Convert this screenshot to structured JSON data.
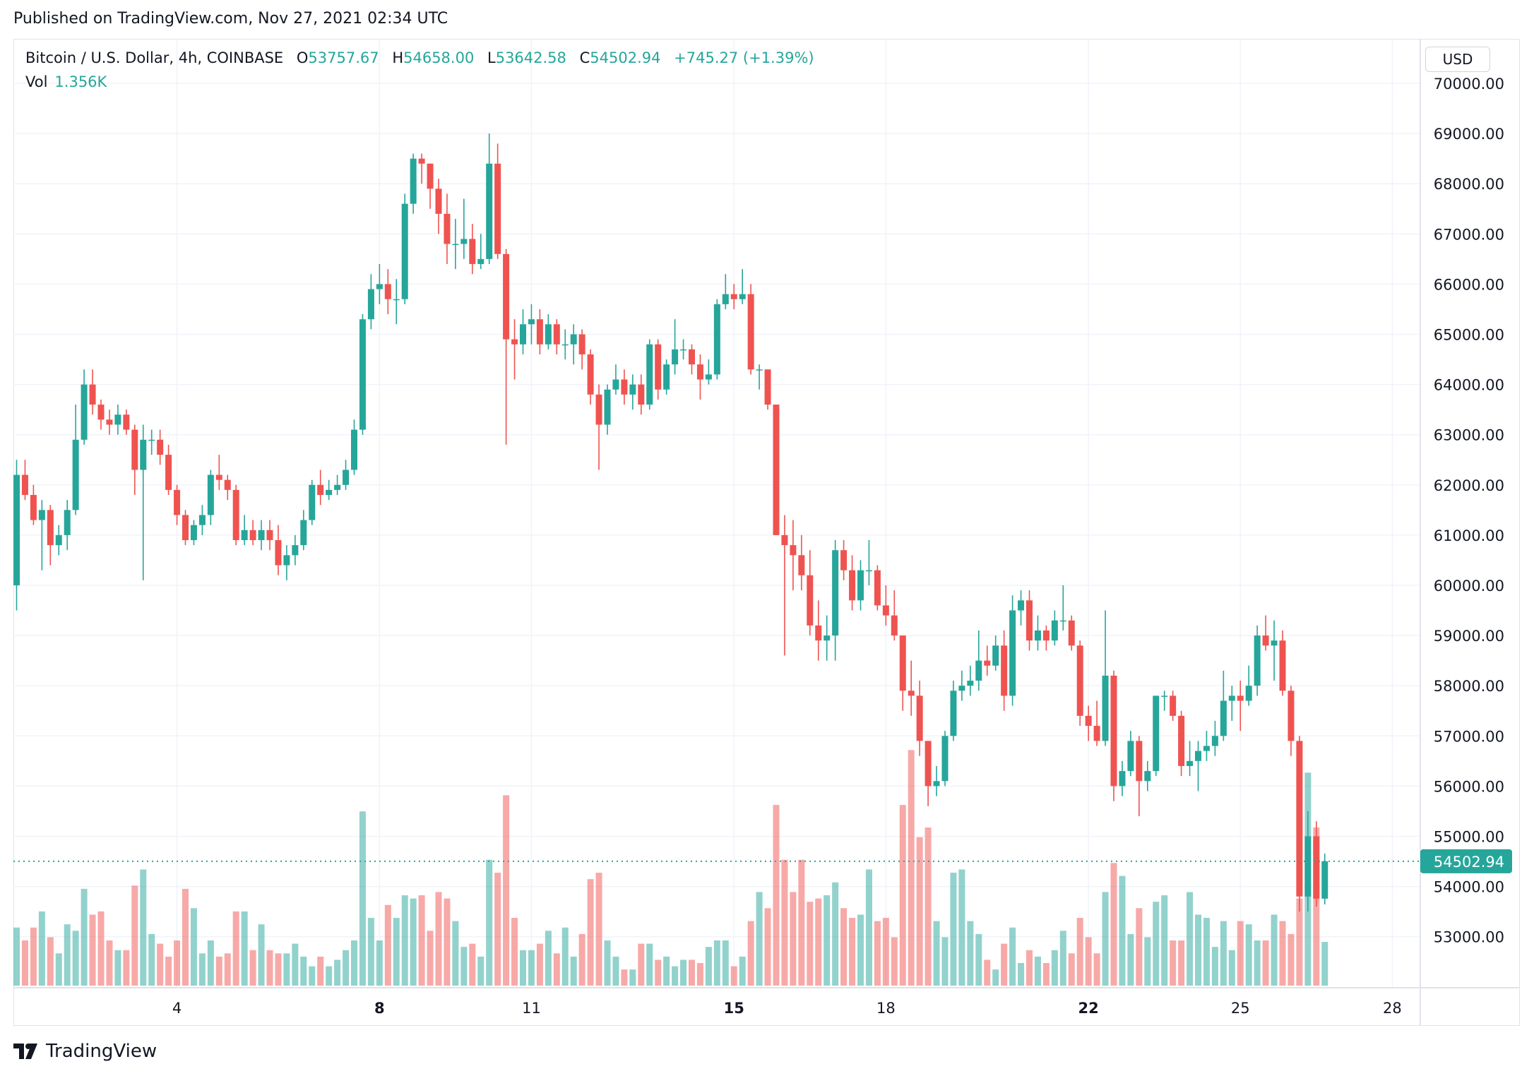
{
  "header": {
    "published": "Published on TradingView.com, Nov 27, 2021 02:34 UTC"
  },
  "legend": {
    "symbol": "Bitcoin / U.S. Dollar, 4h, COINBASE",
    "o_label": "O",
    "o": "53757.67",
    "h_label": "H",
    "h": "54658.00",
    "l_label": "L",
    "l": "53642.58",
    "c_label": "C",
    "c": "54502.94",
    "change": "+745.27 (+1.39%)",
    "vol_label": "Vol",
    "vol": "1.356K"
  },
  "currency": "USD",
  "footer": {
    "brand": "TradingView"
  },
  "colors": {
    "up": "#26a69a",
    "down": "#ef5350",
    "grid": "#f0f3fa"
  },
  "chart_data": {
    "type": "candlestick",
    "interval": "4h",
    "ylim": [
      52200,
      70700
    ],
    "y_ticks": [
      53000,
      54000,
      55000,
      56000,
      57000,
      58000,
      59000,
      60000,
      61000,
      62000,
      63000,
      64000,
      65000,
      66000,
      67000,
      68000,
      69000,
      70000
    ],
    "x_ticks": [
      {
        "label": "4",
        "bold": false,
        "candle": 19
      },
      {
        "label": "8",
        "bold": true,
        "candle": 43
      },
      {
        "label": "11",
        "bold": false,
        "candle": 61
      },
      {
        "label": "15",
        "bold": true,
        "candle": 85
      },
      {
        "label": "18",
        "bold": false,
        "candle": 103
      },
      {
        "label": "22",
        "bold": true,
        "candle": 127
      },
      {
        "label": "25",
        "bold": false,
        "candle": 145
      },
      {
        "label": "28",
        "bold": false,
        "candle": 163
      }
    ],
    "last_price": 54502.94,
    "last_price_label": "54502.94",
    "ohlc": [
      [
        60000,
        62500,
        59500,
        62200
      ],
      [
        62200,
        62500,
        61700,
        61800
      ],
      [
        61800,
        62000,
        61200,
        61300
      ],
      [
        61300,
        61700,
        60300,
        61500
      ],
      [
        61500,
        61600,
        60400,
        60800
      ],
      [
        60800,
        61200,
        60600,
        61000
      ],
      [
        61000,
        61700,
        60700,
        61500
      ],
      [
        61500,
        63600,
        61400,
        62900
      ],
      [
        62900,
        64300,
        62800,
        64000
      ],
      [
        64000,
        64300,
        63400,
        63600
      ],
      [
        63600,
        63700,
        63100,
        63300
      ],
      [
        63300,
        63500,
        63000,
        63200
      ],
      [
        63200,
        63600,
        63000,
        63400
      ],
      [
        63400,
        63500,
        63000,
        63100
      ],
      [
        63100,
        63200,
        61800,
        62300
      ],
      [
        62300,
        63200,
        60100,
        62900
      ],
      [
        62900,
        63100,
        62600,
        62900
      ],
      [
        62900,
        63100,
        62400,
        62600
      ],
      [
        62600,
        62800,
        61800,
        61900
      ],
      [
        61900,
        62000,
        61200,
        61400
      ],
      [
        61400,
        61500,
        60800,
        60900
      ],
      [
        60900,
        61300,
        60800,
        61200
      ],
      [
        61200,
        61600,
        61000,
        61400
      ],
      [
        61400,
        62300,
        61200,
        62200
      ],
      [
        62200,
        62600,
        61900,
        62100
      ],
      [
        62100,
        62200,
        61700,
        61900
      ],
      [
        61900,
        62000,
        60800,
        60900
      ],
      [
        60900,
        61400,
        60800,
        61100
      ],
      [
        61100,
        61300,
        60800,
        60900
      ],
      [
        60900,
        61300,
        60700,
        61100
      ],
      [
        61100,
        61300,
        60700,
        60900
      ],
      [
        60900,
        61200,
        60200,
        60400
      ],
      [
        60400,
        60800,
        60100,
        60600
      ],
      [
        60600,
        61000,
        60400,
        60800
      ],
      [
        60800,
        61500,
        60700,
        61300
      ],
      [
        61300,
        62100,
        61200,
        62000
      ],
      [
        62000,
        62300,
        61600,
        61800
      ],
      [
        61800,
        62100,
        61700,
        61900
      ],
      [
        61900,
        62200,
        61800,
        62000
      ],
      [
        62000,
        62500,
        61900,
        62300
      ],
      [
        62300,
        63300,
        62200,
        63100
      ],
      [
        63100,
        65400,
        63000,
        65300
      ],
      [
        65300,
        66200,
        65100,
        65900
      ],
      [
        65900,
        66400,
        65600,
        66000
      ],
      [
        66000,
        66300,
        65400,
        65700
      ],
      [
        65700,
        66100,
        65200,
        65700
      ],
      [
        65700,
        67800,
        65600,
        67600
      ],
      [
        67600,
        68600,
        67400,
        68500
      ],
      [
        68500,
        68600,
        68000,
        68400
      ],
      [
        68400,
        68400,
        67500,
        67900
      ],
      [
        67900,
        68100,
        67000,
        67400
      ],
      [
        67400,
        67800,
        66400,
        66800
      ],
      [
        66800,
        67300,
        66300,
        66800
      ],
      [
        66800,
        67700,
        66500,
        66900
      ],
      [
        66900,
        67200,
        66200,
        66400
      ],
      [
        66400,
        67000,
        66300,
        66500
      ],
      [
        66500,
        69000,
        66400,
        68400
      ],
      [
        68400,
        68800,
        66500,
        66600
      ],
      [
        66600,
        66700,
        62800,
        64900
      ],
      [
        64900,
        65300,
        64100,
        64800
      ],
      [
        64800,
        65500,
        64600,
        65200
      ],
      [
        65200,
        65600,
        64800,
        65300
      ],
      [
        65300,
        65500,
        64600,
        64800
      ],
      [
        64800,
        65400,
        64700,
        65200
      ],
      [
        65200,
        65300,
        64600,
        64800
      ],
      [
        64800,
        65100,
        64500,
        64800
      ],
      [
        64800,
        65200,
        64400,
        65000
      ],
      [
        65000,
        65100,
        64300,
        64600
      ],
      [
        64600,
        64700,
        63600,
        63800
      ],
      [
        63800,
        64000,
        62300,
        63200
      ],
      [
        63200,
        64000,
        63000,
        63900
      ],
      [
        63900,
        64400,
        63800,
        64100
      ],
      [
        64100,
        64300,
        63600,
        63800
      ],
      [
        63800,
        64200,
        63500,
        64000
      ],
      [
        64000,
        64200,
        63400,
        63600
      ],
      [
        63600,
        64900,
        63500,
        64800
      ],
      [
        64800,
        64900,
        63700,
        63900
      ],
      [
        63900,
        64500,
        63800,
        64400
      ],
      [
        64400,
        65300,
        64200,
        64700
      ],
      [
        64700,
        64900,
        64500,
        64700
      ],
      [
        64700,
        64800,
        64200,
        64400
      ],
      [
        64400,
        64600,
        63700,
        64100
      ],
      [
        64100,
        64500,
        64000,
        64200
      ],
      [
        64200,
        65700,
        64100,
        65600
      ],
      [
        65600,
        66200,
        65500,
        65800
      ],
      [
        65800,
        66000,
        65500,
        65700
      ],
      [
        65700,
        66300,
        65600,
        65800
      ],
      [
        65800,
        66000,
        64200,
        64300
      ],
      [
        64300,
        64400,
        63900,
        64300
      ],
      [
        64300,
        64300,
        63500,
        63600
      ],
      [
        63600,
        63600,
        61000,
        61000
      ],
      [
        61000,
        61400,
        58600,
        60800
      ],
      [
        60800,
        61300,
        59900,
        60600
      ],
      [
        60600,
        61000,
        59900,
        60200
      ],
      [
        60200,
        60700,
        59000,
        59200
      ],
      [
        59200,
        59700,
        58500,
        58900
      ],
      [
        58900,
        59400,
        58500,
        59000
      ],
      [
        59000,
        60900,
        58500,
        60700
      ],
      [
        60700,
        60900,
        60100,
        60300
      ],
      [
        60300,
        60600,
        59500,
        59700
      ],
      [
        59700,
        60500,
        59500,
        60300
      ],
      [
        60300,
        60900,
        60000,
        60300
      ],
      [
        60300,
        60400,
        59500,
        59600
      ],
      [
        59600,
        60000,
        59200,
        59400
      ],
      [
        59400,
        59900,
        58900,
        59000
      ],
      [
        59000,
        59000,
        57500,
        57900
      ],
      [
        57900,
        58500,
        57400,
        57800
      ],
      [
        57800,
        58100,
        56600,
        56900
      ],
      [
        56900,
        56900,
        55600,
        56000
      ],
      [
        56000,
        56400,
        55800,
        56100
      ],
      [
        56100,
        57100,
        56000,
        57000
      ],
      [
        57000,
        58100,
        56900,
        57900
      ],
      [
        57900,
        58300,
        57700,
        58000
      ],
      [
        58000,
        58400,
        57800,
        58100
      ],
      [
        58100,
        59100,
        57900,
        58500
      ],
      [
        58500,
        58800,
        58200,
        58400
      ],
      [
        58400,
        59000,
        58300,
        58800
      ],
      [
        58800,
        59100,
        57500,
        57800
      ],
      [
        57800,
        59800,
        57600,
        59500
      ],
      [
        59500,
        59900,
        59200,
        59700
      ],
      [
        59700,
        59900,
        58700,
        58900
      ],
      [
        58900,
        59400,
        58700,
        59100
      ],
      [
        59100,
        59200,
        58700,
        58900
      ],
      [
        58900,
        59500,
        58800,
        59300
      ],
      [
        59300,
        60000,
        59100,
        59300
      ],
      [
        59300,
        59400,
        58700,
        58800
      ],
      [
        58800,
        58900,
        57200,
        57400
      ],
      [
        57400,
        57600,
        56900,
        57200
      ],
      [
        57200,
        57700,
        56800,
        56900
      ],
      [
        56900,
        59500,
        56800,
        58200
      ],
      [
        58200,
        58300,
        55700,
        56000
      ],
      [
        56000,
        56500,
        55800,
        56300
      ],
      [
        56300,
        57100,
        56200,
        56900
      ],
      [
        56900,
        57000,
        55400,
        56100
      ],
      [
        56100,
        56500,
        55900,
        56300
      ],
      [
        56300,
        57800,
        56200,
        57800
      ],
      [
        57800,
        57900,
        57500,
        57800
      ],
      [
        57800,
        57900,
        57300,
        57400
      ],
      [
        57400,
        57500,
        56200,
        56400
      ],
      [
        56400,
        56900,
        56200,
        56500
      ],
      [
        56500,
        56900,
        55900,
        56700
      ],
      [
        56700,
        57100,
        56500,
        56800
      ],
      [
        56800,
        57300,
        56600,
        57000
      ],
      [
        57000,
        58300,
        56900,
        57700
      ],
      [
        57700,
        58000,
        57300,
        57800
      ],
      [
        57800,
        58100,
        57100,
        57700
      ],
      [
        57700,
        58400,
        57600,
        58000
      ],
      [
        58000,
        59200,
        57800,
        59000
      ],
      [
        59000,
        59400,
        58700,
        58800
      ],
      [
        58800,
        59300,
        58100,
        58900
      ],
      [
        58900,
        59100,
        57800,
        57900
      ],
      [
        57900,
        58000,
        56600,
        56900
      ],
      [
        56900,
        57000,
        53500,
        53800
      ],
      [
        53800,
        55500,
        53500,
        55000
      ],
      [
        55000,
        55300,
        53600,
        53757.67
      ],
      [
        53757.67,
        54658,
        53642.58,
        54502.94
      ]
    ],
    "volume_k": [
      1.8,
      1.4,
      1.8,
      2.3,
      1.5,
      1.0,
      1.9,
      1.7,
      3.0,
      2.2,
      2.3,
      1.4,
      1.1,
      1.1,
      3.1,
      3.6,
      1.6,
      1.3,
      0.9,
      1.4,
      3.0,
      2.4,
      1.0,
      1.4,
      0.9,
      1.0,
      2.3,
      2.3,
      1.1,
      1.9,
      1.1,
      1.0,
      1.0,
      1.3,
      0.9,
      0.6,
      0.9,
      0.6,
      0.8,
      1.1,
      1.4,
      5.4,
      2.1,
      1.4,
      2.5,
      2.1,
      2.8,
      2.7,
      2.8,
      1.7,
      2.9,
      2.7,
      2.0,
      1.2,
      1.3,
      0.9,
      3.9,
      3.5,
      5.9,
      2.1,
      1.1,
      1.1,
      1.3,
      1.7,
      1.0,
      1.8,
      0.9,
      1.6,
      3.3,
      3.5,
      1.4,
      0.9,
      0.5,
      0.5,
      1.3,
      1.3,
      0.8,
      0.9,
      0.6,
      0.8,
      0.8,
      0.7,
      1.2,
      1.4,
      1.4,
      0.6,
      0.9,
      2.0,
      2.9,
      2.4,
      5.6,
      3.9,
      2.9,
      3.9,
      2.6,
      2.7,
      2.8,
      3.2,
      2.4,
      2.1,
      2.2,
      3.6,
      2.0,
      2.1,
      1.5,
      5.6,
      7.3,
      4.6,
      4.9,
      2.0,
      1.5,
      3.5,
      3.6,
      2.0,
      1.6,
      0.8,
      0.5,
      1.3,
      1.8,
      0.7,
      1.1,
      0.9,
      0.7,
      1.1,
      1.7,
      1.0,
      2.1,
      1.5,
      1.0,
      2.9,
      3.8,
      3.4,
      1.6,
      2.4,
      1.5,
      2.6,
      2.8,
      1.4,
      1.4,
      2.9,
      2.2,
      2.1,
      1.2,
      2.0,
      1.1,
      2.0,
      1.9,
      1.4,
      1.4,
      2.2,
      2.0,
      1.6,
      2.7,
      6.6,
      4.9,
      1.356
    ]
  }
}
